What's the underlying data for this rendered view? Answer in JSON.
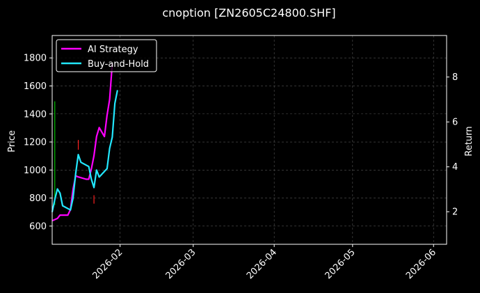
{
  "chart_data": {
    "type": "line",
    "title": "cnoption [ZN2605C24800.SHF]",
    "ylabel": "Price",
    "y2label": "Return",
    "grid": true,
    "legend_placement": "top-left",
    "x_domain": [
      "2026-01-06",
      "2026-06-06"
    ],
    "ylim": [
      470,
      1960
    ],
    "y2lim": [
      0.55,
      9.85
    ],
    "x_ticks": [
      "2026-02",
      "2026-03",
      "2026-04",
      "2026-05",
      "2026-06"
    ],
    "y_ticks": [
      600,
      800,
      1000,
      1200,
      1400,
      1600,
      1800
    ],
    "y2_ticks": [
      2,
      4,
      6,
      8
    ],
    "series": [
      {
        "name": "AI Strategy",
        "axis": "right",
        "color": "#ff00ff",
        "points": [
          [
            "2026-01-06",
            1.6
          ],
          [
            "2026-01-07",
            1.65
          ],
          [
            "2026-01-08",
            1.7
          ],
          [
            "2026-01-09",
            1.85
          ],
          [
            "2026-01-12",
            1.85
          ],
          [
            "2026-01-13",
            2.1
          ],
          [
            "2026-01-14",
            3.0
          ],
          [
            "2026-01-15",
            3.6
          ],
          [
            "2026-01-16",
            3.55
          ],
          [
            "2026-01-19",
            3.45
          ],
          [
            "2026-01-20",
            3.45
          ],
          [
            "2026-01-21",
            3.9
          ],
          [
            "2026-01-22",
            4.5
          ],
          [
            "2026-01-23",
            5.35
          ],
          [
            "2026-01-24",
            5.75
          ],
          [
            "2026-01-26",
            5.35
          ],
          [
            "2026-01-27",
            6.3
          ],
          [
            "2026-01-28",
            7.0
          ],
          [
            "2026-01-29",
            8.6
          ]
        ]
      },
      {
        "name": "Buy-and-Hold",
        "axis": "left",
        "color": "#22e8ff",
        "points": [
          [
            "2026-01-06",
            700
          ],
          [
            "2026-01-07",
            790
          ],
          [
            "2026-01-08",
            865
          ],
          [
            "2026-01-09",
            835
          ],
          [
            "2026-01-10",
            745
          ],
          [
            "2026-01-13",
            715
          ],
          [
            "2026-01-14",
            800
          ],
          [
            "2026-01-15",
            975
          ],
          [
            "2026-01-16",
            1110
          ],
          [
            "2026-01-17",
            1055
          ],
          [
            "2026-01-20",
            1025
          ],
          [
            "2026-01-21",
            935
          ],
          [
            "2026-01-22",
            875
          ],
          [
            "2026-01-23",
            1000
          ],
          [
            "2026-01-24",
            950
          ],
          [
            "2026-01-27",
            1010
          ],
          [
            "2026-01-28",
            1155
          ],
          [
            "2026-01-29",
            1235
          ],
          [
            "2026-01-30",
            1475
          ],
          [
            "2026-01-31",
            1570
          ]
        ]
      }
    ],
    "markers": [
      {
        "type": "buy",
        "color": "#00c000",
        "date": "2026-01-07",
        "low": 750,
        "high": 1490
      },
      {
        "type": "sell",
        "color": "#ff2020",
        "date": "2026-01-16",
        "low": 1145,
        "high": 1215
      },
      {
        "type": "sell",
        "color": "#ff2020",
        "date": "2026-01-22",
        "low": 760,
        "high": 820
      }
    ]
  }
}
